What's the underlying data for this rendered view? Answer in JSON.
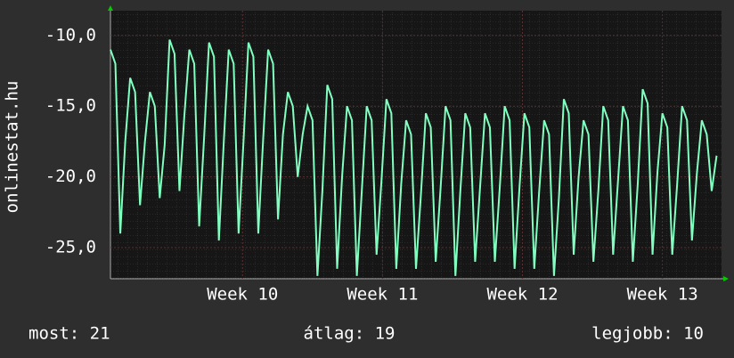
{
  "chart_data": {
    "type": "line",
    "y_label": "onlinestat.hu",
    "annotations": [
      "most: 21",
      "átlag: 19",
      "legjobb: 10"
    ],
    "xlim": [
      0,
      31
    ],
    "xticks": [
      {
        "value": 6.7,
        "label": "Week 10"
      },
      {
        "value": 13.8,
        "label": "Week 11"
      },
      {
        "value": 20.9,
        "label": "Week 12"
      },
      {
        "value": 28.0,
        "label": "Week 13"
      }
    ],
    "ylim": [
      -27.2,
      -8.25
    ],
    "yticks": [
      {
        "value": -10,
        "label": "-10,0"
      },
      {
        "value": -15,
        "label": "-15,0"
      },
      {
        "value": -20,
        "label": "-20,0"
      },
      {
        "value": -25,
        "label": "-25,0"
      }
    ],
    "grid": true,
    "x": [
      0,
      0.25,
      0.5,
      0.75,
      1,
      1.25,
      1.5,
      1.75,
      2,
      2.25,
      2.5,
      2.75,
      3,
      3.25,
      3.5,
      3.75,
      4,
      4.25,
      4.5,
      4.75,
      5,
      5.25,
      5.5,
      5.75,
      6,
      6.25,
      6.5,
      6.75,
      7,
      7.25,
      7.5,
      7.75,
      8,
      8.25,
      8.5,
      8.75,
      9,
      9.25,
      9.5,
      9.75,
      10,
      10.25,
      10.5,
      10.75,
      11,
      11.25,
      11.5,
      11.75,
      12,
      12.25,
      12.5,
      12.75,
      13,
      13.25,
      13.5,
      13.75,
      14,
      14.25,
      14.5,
      14.75,
      15,
      15.25,
      15.5,
      15.75,
      16,
      16.25,
      16.5,
      16.75,
      17,
      17.25,
      17.5,
      17.75,
      18,
      18.25,
      18.5,
      18.75,
      19,
      19.25,
      19.5,
      19.75,
      20,
      20.25,
      20.5,
      20.75,
      21,
      21.25,
      21.5,
      21.75,
      22,
      22.25,
      22.5,
      22.75,
      23,
      23.25,
      23.5,
      23.75,
      24,
      24.25,
      24.5,
      24.75,
      25,
      25.25,
      25.5,
      25.75,
      26,
      26.25,
      26.5,
      26.75,
      27,
      27.25,
      27.5,
      27.75,
      28,
      28.25,
      28.5,
      28.75,
      29,
      29.25,
      29.5,
      29.75,
      30,
      30.25,
      30.5,
      30.75
    ],
    "series": [
      {
        "color": "#80ffc0",
        "values": [
          -11,
          -12,
          -24,
          -17.5,
          -13,
          -14,
          -22,
          -17.5,
          -14,
          -15,
          -21.5,
          -17.75,
          -10.3,
          -11.3,
          -21,
          -15.65,
          -11,
          -12,
          -23.5,
          -17.25,
          -10.5,
          -11.5,
          -24.5,
          -17.5,
          -11,
          -12,
          -24,
          -17.5,
          -10.5,
          -11.5,
          -24,
          -17.25,
          -11,
          -12,
          -23,
          -17,
          -14,
          -15,
          -20,
          -17,
          -15,
          -16,
          -27,
          -21,
          -13.5,
          -14.5,
          -26.5,
          -20,
          -15,
          -16,
          -27,
          -21,
          -15,
          -16,
          -25.5,
          -20.25,
          -14.5,
          -15.5,
          -26.5,
          -20.5,
          -16,
          -17,
          -26.5,
          -21.25,
          -15.5,
          -16.5,
          -26,
          -20.75,
          -15,
          -16,
          -27,
          -21,
          -15.5,
          -16.5,
          -26,
          -20.75,
          -15.5,
          -16.5,
          -26,
          -20.75,
          -15,
          -16,
          -26.5,
          -20.75,
          -15.5,
          -16.5,
          -26.5,
          -21,
          -16,
          -17,
          -27,
          -21.5,
          -14.5,
          -15.5,
          -25.5,
          -20,
          -16,
          -17,
          -26,
          -21,
          -15,
          -16,
          -25.5,
          -20.25,
          -15,
          -16,
          -26,
          -20.5,
          -13.8,
          -14.8,
          -25.5,
          -19.65,
          -15.5,
          -16.5,
          -25.5,
          -20.5,
          -15,
          -16,
          -24.5,
          -19.75,
          -16,
          -17,
          -21,
          -18.5
        ]
      }
    ]
  }
}
